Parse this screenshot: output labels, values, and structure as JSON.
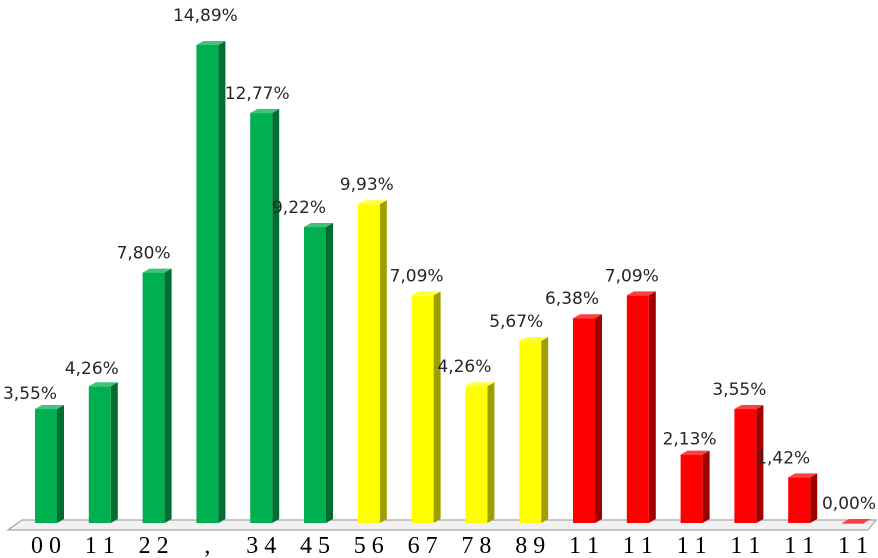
{
  "chart_data": {
    "type": "bar",
    "title": "",
    "xlabel": "",
    "ylabel": "",
    "ylim": [
      0,
      15
    ],
    "grid": false,
    "legend": "none",
    "categories": [
      "0 0",
      "1 1",
      "2 2",
      ",",
      "3 4",
      "4 5",
      "5 6",
      "6 7",
      "7 8",
      "8 9",
      "1 1",
      "1 1",
      "1 1",
      "1 1",
      "1 1",
      "1 1"
    ],
    "values": [
      3.55,
      4.26,
      7.8,
      14.89,
      12.77,
      9.22,
      9.93,
      7.09,
      4.26,
      5.67,
      6.38,
      7.09,
      2.13,
      3.55,
      1.42,
      0.0
    ],
    "data_labels": [
      "3,55%",
      "4,26%",
      "7,80%",
      "14,89%",
      "12,77%",
      "9,22%",
      "9,93%",
      "7,09%",
      "4,26%",
      "5,67%",
      "6,38%",
      "7,09%",
      "2,13%",
      "3,55%",
      "1,42%",
      "0,00%"
    ],
    "colors": [
      "#00b050",
      "#00b050",
      "#00b050",
      "#00b050",
      "#00b050",
      "#00b050",
      "#ffff00",
      "#ffff00",
      "#ffff00",
      "#ffff00",
      "#ff0000",
      "#ff0000",
      "#ff0000",
      "#ff0000",
      "#ff0000",
      "#ff0000"
    ]
  }
}
